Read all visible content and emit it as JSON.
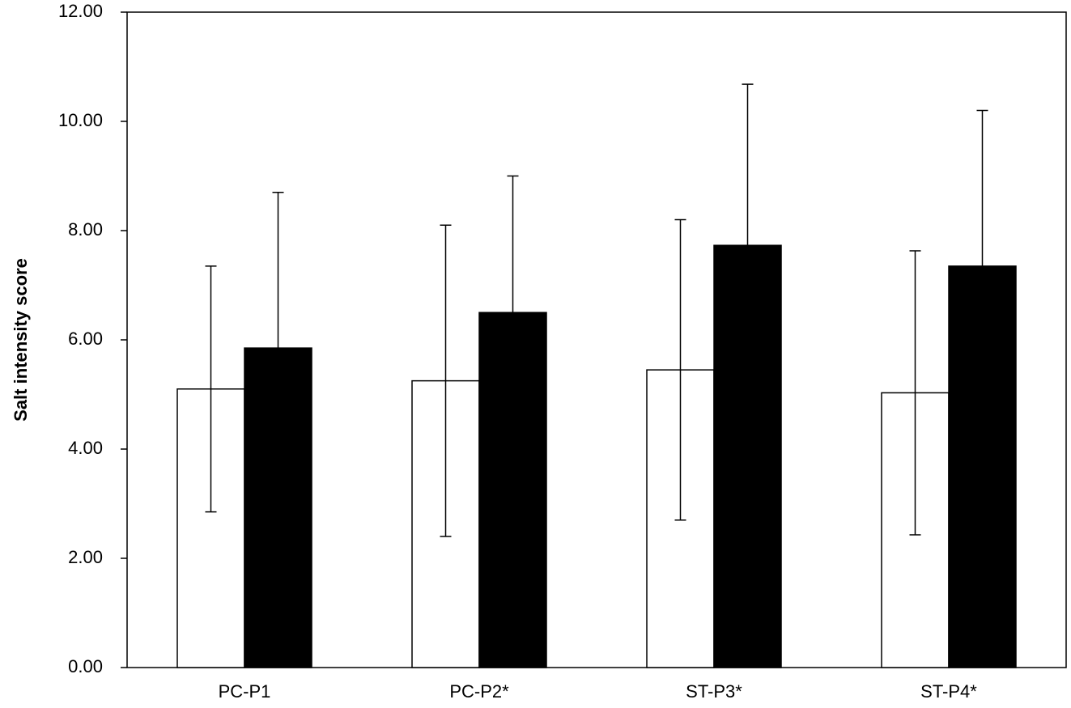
{
  "chart_data": {
    "type": "bar",
    "title": "",
    "xlabel": "",
    "ylabel": "Salt intensity score",
    "ylim": [
      0,
      12
    ],
    "yticks": [
      "0.00",
      "2.00",
      "4.00",
      "6.00",
      "8.00",
      "10.00",
      "12.00"
    ],
    "categories": [
      "PC-P1",
      "PC-P2*",
      "ST-P3*",
      "ST-P4*"
    ],
    "grid": false,
    "legend": "none",
    "series": [
      {
        "color": "#ffffff",
        "values": [
          5.1,
          5.25,
          5.45,
          5.03
        ],
        "error": [
          2.25,
          2.85,
          2.75,
          2.6
        ]
      },
      {
        "color": "#000000",
        "values": [
          5.85,
          6.5,
          7.73,
          7.35
        ],
        "error": [
          2.85,
          2.5,
          2.95,
          2.85
        ]
      }
    ]
  }
}
